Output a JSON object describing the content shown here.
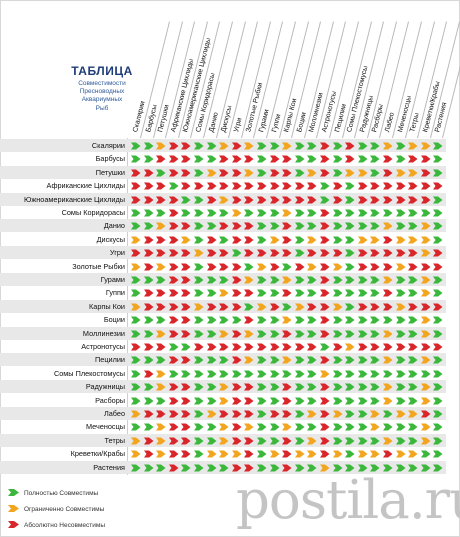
{
  "title": "ТАБЛИЦА",
  "subtitle_lines": [
    "Совместимости",
    "Пресноводных",
    "Аквариумных",
    "Рыб"
  ],
  "species": [
    "Скалярии",
    "Барбусы",
    "Петушки",
    "Африканские Цихлиды",
    "Южноамериканские Цихлиды",
    "Сомы Коридорасы",
    "Данио",
    "Дискусы",
    "Угри",
    "Золотые Рыбки",
    "Гурами",
    "Гуппи",
    "Карпы Кои",
    "Боции",
    "Моллинезии",
    "Астронотусы",
    "Пецилии",
    "Сомы Плекостомусы",
    "Радужницы",
    "Расборы",
    "Лабео",
    "Меченосцы",
    "Тетры",
    "Креветки/Крабы",
    "Растения"
  ],
  "colors": {
    "full": "#3bb83b",
    "limited": "#f2a51f",
    "none": "#d8262b"
  },
  "matrix": [
    "GGYRRGGYRYGGYGGRGRGGYGYYG",
    "GGRRRGGRRRGRRGGRGRGGRGRRG",
    "RRGRRGYRRYGRRGYRGYYGRYYRG",
    "RRRGRRRRRRRRRRRGRGRRRRRRR",
    "RRRRGGRYRRRRRRRGRGRRRRRRG",
    "GGGRGGGGYGGGYGGRGGGGGGGGG",
    "GGYRRGGRRRGGRGGRGGGGYGGYG",
    "YRRRYGRGRRGYRGYRGGYYRYYYG",
    "RRRRRYRRGRRRRGRRRGRRRRRYR",
    "YRYRRGRRRGYRGRYRYGRRRYRRR",
    "GGGRRGGGRYGGYGGRGGGGYGGYG",
    "GRRRRGGYRRGGRGGRGGGGRGGYG",
    "YRRRRYRRRGYRGYRRYGRRRYRRR",
    "GGGRRGGGGRGGYGGRGGGGGGGYG",
    "GGYRRGGYRYGGRGGRGGGGYGGYG",
    "RRRGGRRRRRRRRRRGRYRRRRRRR",
    "GGGRRGGGRYGGYGGRGGGGYGGYG",
    "GRYGGGGGGGGGGGGYGGGGGGGGG",
    "GGYRRGGYRRGGRGGRGGGGYGGYG",
    "GGGRRGGYRRGGRGGRGGGGYGGYG",
    "YRRRRGYRRRGRRGYRYGGYGYYRG",
    "GGYRRGGYRYGGYGGRGGGYGGGYG",
    "YRYRRGGYRRGGRGYRGGGGYGGYG",
    "YRYRRGYYYRGYRYYRYGYYRYYGG",
    "GGGRGGGGRRGGRGGYGGGGGGGGG"
  ],
  "legend": [
    {
      "key": "full",
      "label": "Полностью Совместимы"
    },
    {
      "key": "limited",
      "label": "Ограниченно Совместимы"
    },
    {
      "key": "none",
      "label": "Абсолютно Несовместимы"
    }
  ],
  "watermark": "postila.ru"
}
